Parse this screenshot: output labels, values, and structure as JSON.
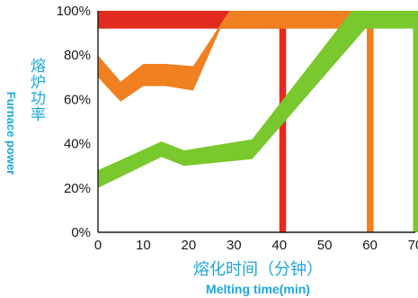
{
  "chart_data": {
    "type": "area",
    "title": "",
    "xlabel_cn": "熔化时间（分钟）",
    "xlabel_en": "Melting time(min)",
    "ylabel_cn": "熔炉功率",
    "ylabel_en": "Furnace power",
    "x_ticks": [
      "0",
      "10",
      "20",
      "30",
      "40",
      "50",
      "60",
      "70"
    ],
    "y_ticks": [
      "0%",
      "20%",
      "40%",
      "60%",
      "80%",
      "100%"
    ],
    "xlim": [
      0,
      70
    ],
    "ylim": [
      0,
      100
    ],
    "grid": false,
    "legend": "none",
    "series": [
      {
        "color": "#e32a1f",
        "band_upper": [
          [
            0,
            100
          ],
          [
            40.8,
            100
          ]
        ],
        "band_lower": [
          [
            0,
            92
          ],
          [
            40.8,
            92
          ]
        ],
        "end_bar": {
          "x_start": 40,
          "x_end": 41.5,
          "y_top": 100
        }
      },
      {
        "color": "#f08020",
        "band_upper": [
          [
            0,
            80
          ],
          [
            5,
            68
          ],
          [
            10,
            76
          ],
          [
            15,
            76
          ],
          [
            21,
            75
          ],
          [
            29,
            100
          ],
          [
            60.8,
            100
          ]
        ],
        "band_lower": [
          [
            0,
            70
          ],
          [
            5,
            59
          ],
          [
            10,
            66
          ],
          [
            15,
            66
          ],
          [
            21,
            64
          ],
          [
            27,
            92
          ],
          [
            60.8,
            92
          ]
        ],
        "end_bar": {
          "x_start": 59.3,
          "x_end": 60.8,
          "y_top": 100
        }
      },
      {
        "color": "#79c82d",
        "band_upper": [
          [
            0,
            28
          ],
          [
            14,
            41
          ],
          [
            19,
            37
          ],
          [
            34,
            42
          ],
          [
            56,
            100
          ],
          [
            70,
            100
          ]
        ],
        "band_lower": [
          [
            0,
            20
          ],
          [
            14,
            34
          ],
          [
            19,
            30
          ],
          [
            34,
            33
          ],
          [
            59,
            92
          ],
          [
            70,
            92
          ]
        ],
        "end_bar": {
          "x_start": 69.5,
          "x_end": 71,
          "y_top": 100
        }
      }
    ]
  }
}
